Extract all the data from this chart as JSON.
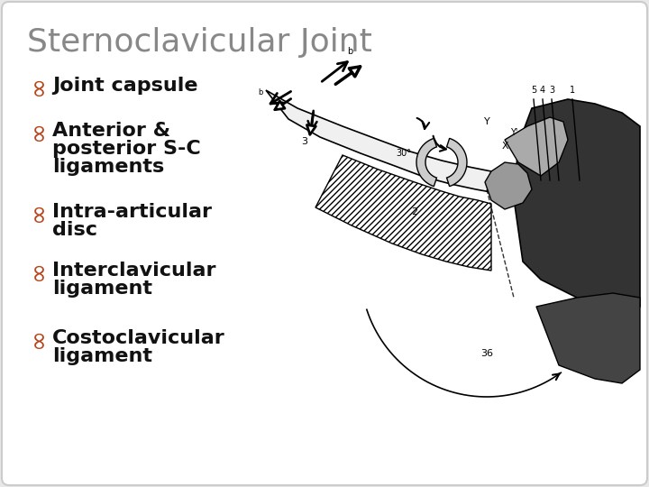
{
  "title": "Sternoclavicular Joint",
  "title_color": "#888888",
  "title_fontsize": 26,
  "background_color": "#e8e8e8",
  "panel_color": "#ffffff",
  "bullet_color": "#b8441a",
  "text_color": "#111111",
  "text_fontsize": 16,
  "bullet_fontsize": 20,
  "items": [
    [
      "Joint capsule"
    ],
    [
      "Anterior &",
      "posterior S-C",
      "ligaments"
    ],
    [
      "Intra-articular",
      "disc"
    ],
    [
      "Interclavicular",
      "ligament"
    ],
    [
      "Costoclavicular",
      "ligament"
    ]
  ],
  "fig_width": 7.2,
  "fig_height": 5.4,
  "dpi": 100
}
